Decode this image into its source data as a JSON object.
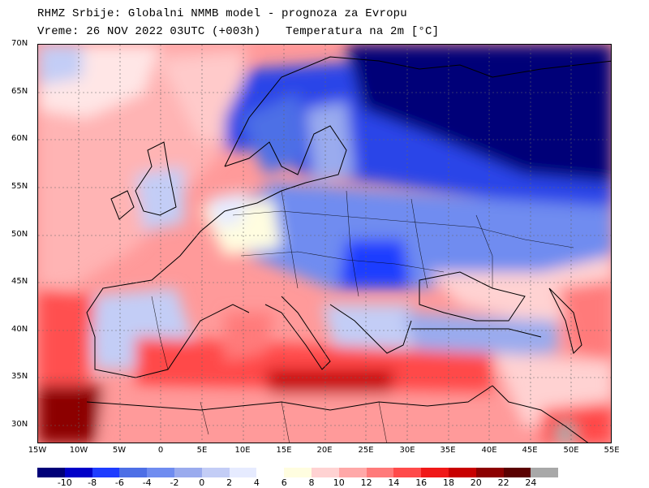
{
  "header": {
    "line1": "RHMZ Srbije: Globalni NMMB model - prognoza za Evropu",
    "line2": "Vreme: 26 NOV 2022 03UTC (+003h)",
    "parameter": "Temperatura na 2m [°C]"
  },
  "map": {
    "type": "temperature-field-map",
    "region": "Europe",
    "lat_range": [
      28,
      70
    ],
    "lon_range": [
      -15,
      55
    ],
    "lat_labels": [
      "70N",
      "65N",
      "60N",
      "55N",
      "50N",
      "45N",
      "40N",
      "35N",
      "30N"
    ],
    "lon_labels": [
      "15W",
      "10W",
      "5W",
      "0",
      "5E",
      "10E",
      "15E",
      "20E",
      "25E",
      "30E",
      "35E",
      "40E",
      "45E",
      "50E",
      "55E"
    ]
  },
  "legend": {
    "colors": [
      "#000078",
      "#0000c8",
      "#1e3cff",
      "#4d6fe6",
      "#6f8cf0",
      "#9aabee",
      "#c3cdf6",
      "#e6ebff",
      "#ffffff",
      "#fffde0",
      "#ffd2d2",
      "#ffa8a8",
      "#ff7a7a",
      "#ff4a4a",
      "#f01818",
      "#c80000",
      "#8c0000",
      "#5a0000",
      "#a8a8a8"
    ],
    "tick_labels": [
      "-10",
      "-8",
      "-6",
      "-4",
      "-2",
      "0",
      "2",
      "4",
      "6",
      "8",
      "10",
      "12",
      "14",
      "16",
      "18",
      "20",
      "22",
      "24"
    ]
  }
}
